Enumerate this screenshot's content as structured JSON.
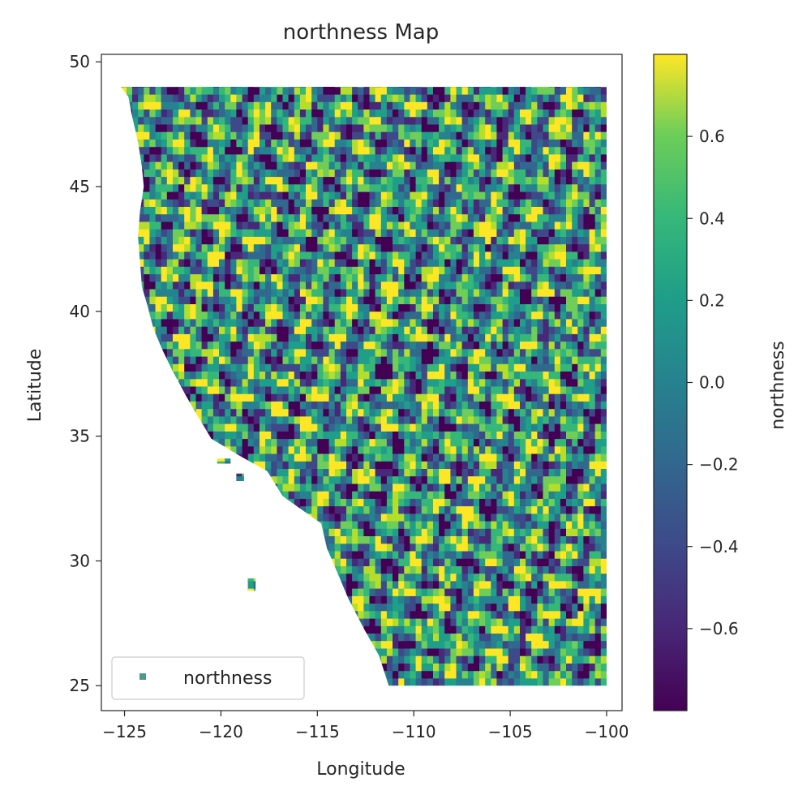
{
  "chart_data": {
    "type": "heatmap",
    "title": "northness Map",
    "xlabel": "Longitude",
    "ylabel": "Latitude",
    "xlim": [
      -126.2,
      -99.2
    ],
    "ylim": [
      24.0,
      50.3
    ],
    "x_ticks": [
      {
        "value": -125,
        "label": "−125"
      },
      {
        "value": -120,
        "label": "−120"
      },
      {
        "value": -115,
        "label": "−115"
      },
      {
        "value": -110,
        "label": "−110"
      },
      {
        "value": -105,
        "label": "−105"
      },
      {
        "value": -100,
        "label": "−100"
      }
    ],
    "y_ticks": [
      {
        "value": 25,
        "label": "25"
      },
      {
        "value": 30,
        "label": "30"
      },
      {
        "value": 35,
        "label": "35"
      },
      {
        "value": 40,
        "label": "40"
      },
      {
        "value": 45,
        "label": "45"
      },
      {
        "value": 50,
        "label": "50"
      }
    ],
    "legend": {
      "label": "northness",
      "placement": "lower-left",
      "marker_color": "#4a9a90"
    },
    "colorbar": {
      "label": "northness",
      "colormap": "viridis",
      "range": [
        -0.8,
        0.8
      ],
      "ticks": [
        {
          "value": 0.6,
          "label": "0.6"
        },
        {
          "value": 0.4,
          "label": "0.4"
        },
        {
          "value": 0.2,
          "label": "0.2"
        },
        {
          "value": 0.0,
          "label": "0.0"
        },
        {
          "value": -0.2,
          "label": "−0.2"
        },
        {
          "value": -0.4,
          "label": "−0.4"
        },
        {
          "value": -0.6,
          "label": "−0.6"
        }
      ]
    },
    "data_extent": {
      "lon": [
        -125.2,
        -100.0
      ],
      "lat": [
        25.0,
        49.0
      ]
    },
    "mainland_coast": [
      [
        -125.2,
        49.0
      ],
      [
        -124.8,
        48.6
      ],
      [
        -124.6,
        47.8
      ],
      [
        -124.3,
        46.8
      ],
      [
        -124.1,
        45.8
      ],
      [
        -124.0,
        45.0
      ],
      [
        -124.2,
        44.0
      ],
      [
        -124.3,
        43.0
      ],
      [
        -124.2,
        42.0
      ],
      [
        -124.1,
        41.0
      ],
      [
        -123.8,
        40.2
      ],
      [
        -123.5,
        39.3
      ],
      [
        -123.0,
        38.4
      ],
      [
        -122.5,
        37.6
      ],
      [
        -121.8,
        36.6
      ],
      [
        -121.2,
        35.8
      ],
      [
        -120.5,
        34.9
      ],
      [
        -119.0,
        34.2
      ],
      [
        -117.6,
        33.6
      ],
      [
        -116.8,
        32.6
      ],
      [
        -116.3,
        31.4
      ],
      [
        -115.7,
        30.3
      ],
      [
        -115.0,
        29.4
      ],
      [
        -114.3,
        28.2
      ],
      [
        -113.5,
        27.2
      ],
      [
        -112.6,
        26.1
      ],
      [
        -112.0,
        25.0
      ]
    ],
    "gulf_west": [
      [
        -114.8,
        31.5
      ],
      [
        -114.5,
        30.5
      ],
      [
        -114.0,
        29.6
      ],
      [
        -113.4,
        28.5
      ],
      [
        -112.6,
        27.3
      ],
      [
        -111.8,
        26.2
      ],
      [
        -111.3,
        25.0
      ]
    ],
    "gulf_east": [
      [
        -114.8,
        31.5
      ],
      [
        -114.2,
        31.2
      ],
      [
        -113.5,
        30.4
      ],
      [
        -112.6,
        29.3
      ],
      [
        -111.8,
        28.0
      ],
      [
        -111.0,
        26.8
      ],
      [
        -110.2,
        25.6
      ],
      [
        -109.6,
        25.0
      ]
    ],
    "islands": [
      {
        "lon": [
          -120.2,
          -119.5
        ],
        "lat": [
          33.9,
          34.1
        ]
      },
      {
        "lon": [
          -119.2,
          -118.8
        ],
        "lat": [
          33.2,
          33.5
        ]
      },
      {
        "lon": [
          -118.6,
          -118.2
        ],
        "lat": [
          28.8,
          29.3
        ]
      }
    ]
  }
}
